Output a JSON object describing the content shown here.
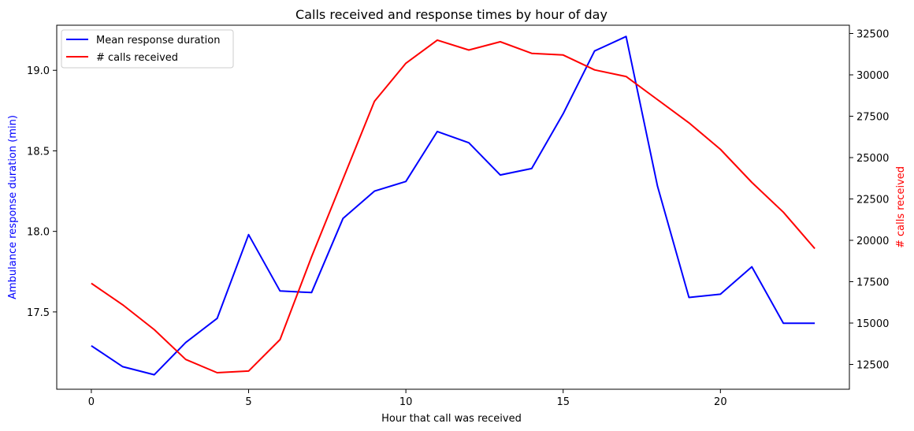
{
  "chart_data": {
    "type": "line",
    "title": "Calls received and response times by hour of day",
    "xlabel": "Hour that call was received",
    "x": [
      0,
      1,
      2,
      3,
      4,
      5,
      6,
      7,
      8,
      9,
      10,
      11,
      12,
      13,
      14,
      15,
      16,
      17,
      18,
      19,
      20,
      21,
      22,
      23
    ],
    "xlim": [
      -1.1,
      24.1
    ],
    "xticks": [
      0,
      5,
      10,
      15,
      20
    ],
    "xtick_labels": [
      "0",
      "5",
      "10",
      "15",
      "20"
    ],
    "y_left": {
      "label": "Ambulance response duration (min)",
      "color": "#0000ff",
      "lim": [
        17.02,
        19.28
      ],
      "ticks": [
        17.5,
        18.0,
        18.5,
        19.0
      ],
      "tick_labels": [
        "17.5",
        "18.0",
        "18.5",
        "19.0"
      ]
    },
    "y_right": {
      "label": "# calls received",
      "color": "#ff0000",
      "lim": [
        11000,
        33000
      ],
      "ticks": [
        12500,
        15000,
        17500,
        20000,
        22500,
        25000,
        27500,
        30000,
        32500
      ],
      "tick_labels": [
        "12500",
        "15000",
        "17500",
        "20000",
        "22500",
        "25000",
        "27500",
        "30000",
        "32500"
      ]
    },
    "series": [
      {
        "name": "Mean response duration",
        "axis": "left",
        "color": "#0000ff",
        "values": [
          17.29,
          17.16,
          17.11,
          17.31,
          17.46,
          17.98,
          17.63,
          17.62,
          18.08,
          18.25,
          18.31,
          18.62,
          18.55,
          18.35,
          18.39,
          18.73,
          19.12,
          19.21,
          18.28,
          17.59,
          17.61,
          17.78,
          17.43,
          17.43
        ]
      },
      {
        "name": "# calls received",
        "axis": "right",
        "color": "#ff0000",
        "values": [
          17400,
          16100,
          14600,
          12800,
          12000,
          12100,
          14000,
          19000,
          23700,
          28400,
          30700,
          32100,
          31500,
          32000,
          31300,
          31200,
          30300,
          29900,
          28500,
          27100,
          25500,
          23500,
          21700,
          19500
        ]
      }
    ],
    "legend": {
      "position": "upper-left",
      "entries": [
        "Mean response duration",
        "# calls received"
      ]
    },
    "grid": false
  }
}
